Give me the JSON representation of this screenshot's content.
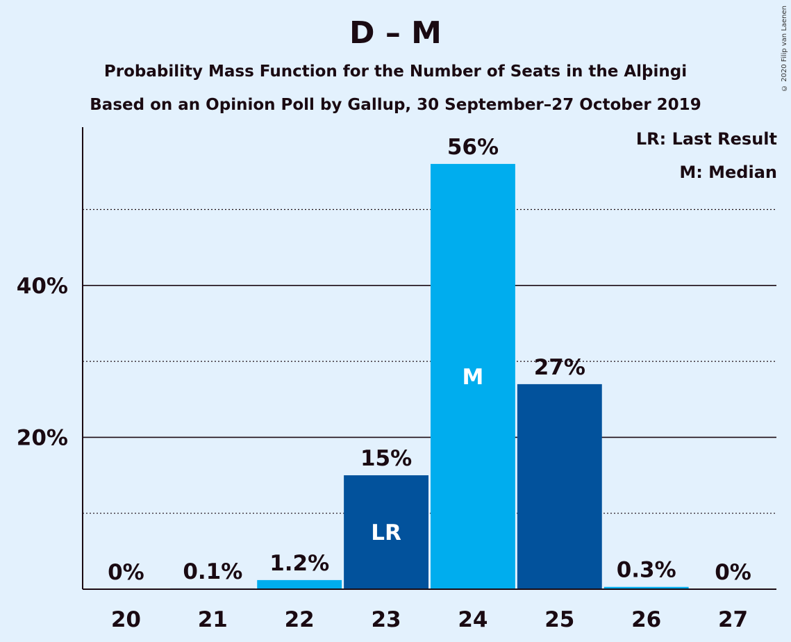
{
  "chart_data": {
    "type": "bar",
    "title": "D – M",
    "subtitle1": "Probability Mass Function for the Number of Seats in the Alþingi",
    "subtitle2": "Based on an Opinion Poll by Gallup, 30 September–27 October 2019",
    "copyright": "© 2020 Filip van Laenen",
    "legend": [
      "LR: Last Result",
      "M: Median"
    ],
    "categories": [
      "20",
      "21",
      "22",
      "23",
      "24",
      "25",
      "26",
      "27"
    ],
    "values": [
      0,
      0.1,
      1.2,
      15,
      56,
      27,
      0.3,
      0
    ],
    "value_labels": [
      "0%",
      "0.1%",
      "1.2%",
      "15%",
      "56%",
      "27%",
      "0.3%",
      "0%"
    ],
    "inner_labels": [
      "",
      "",
      "",
      "LR",
      "M",
      "",
      "",
      ""
    ],
    "bar_colors": [
      "#00adee",
      "#02529c",
      "#00adee",
      "#02529c",
      "#00adee",
      "#02529c",
      "#00adee",
      "#02529c"
    ],
    "ylim": [
      0,
      61
    ],
    "yticks": [
      20,
      40
    ],
    "ytick_labels": [
      "20%",
      "40%"
    ],
    "minor_gridlines": [
      10,
      30,
      50
    ],
    "grid": true,
    "legend_position": "top-right"
  }
}
